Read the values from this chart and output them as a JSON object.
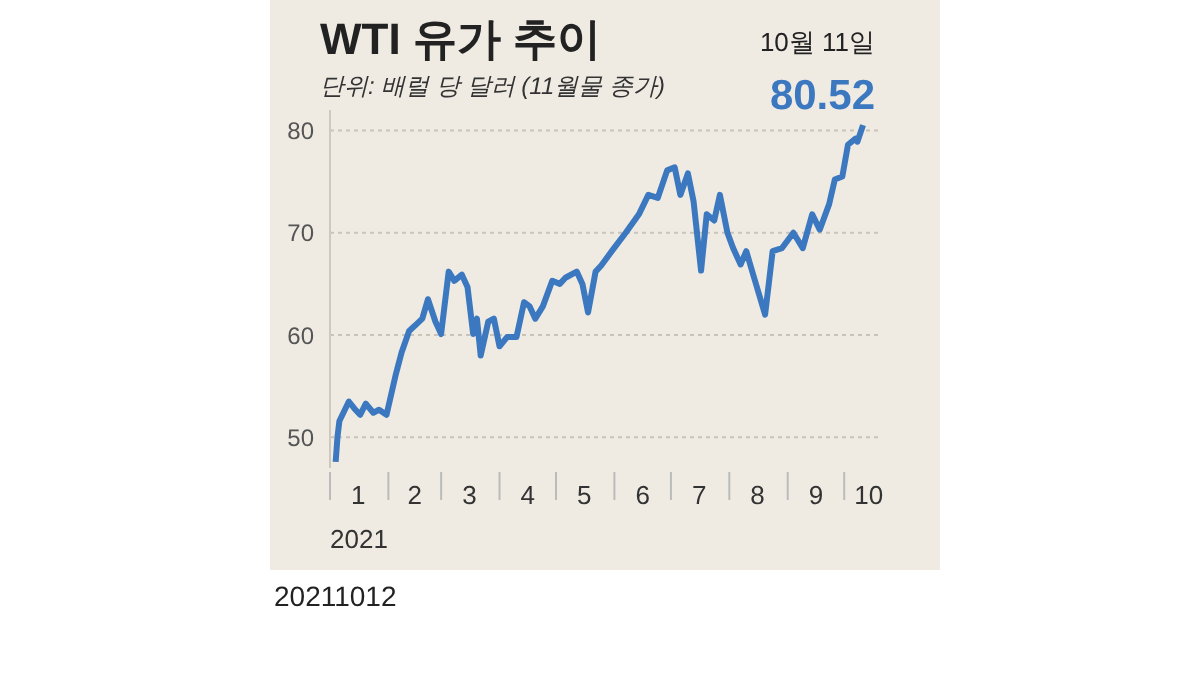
{
  "chart_data": {
    "type": "line",
    "title": "WTI 유가 추이",
    "subtitle": "단위: 배럴 당 달러 (11월물 종가)",
    "xlabel": "2021",
    "x": [
      "2021-01-04",
      "2021-01-05",
      "2021-01-06",
      "2021-01-11",
      "2021-01-14",
      "2021-01-17",
      "2021-01-20",
      "2021-01-24",
      "2021-01-27",
      "2021-01-31",
      "2021-02-05",
      "2021-02-08",
      "2021-02-12",
      "2021-02-15",
      "2021-02-19",
      "2021-02-22",
      "2021-02-26",
      "2021-03-01",
      "2021-03-05",
      "2021-03-08",
      "2021-03-12",
      "2021-03-15",
      "2021-03-18",
      "2021-03-20",
      "2021-03-22",
      "2021-03-26",
      "2021-03-29",
      "2021-04-01",
      "2021-04-05",
      "2021-04-10",
      "2021-04-14",
      "2021-04-17",
      "2021-04-20",
      "2021-04-24",
      "2021-04-29",
      "2021-05-03",
      "2021-05-06",
      "2021-05-12",
      "2021-05-15",
      "2021-05-18",
      "2021-05-22",
      "2021-05-25",
      "2021-05-31",
      "2021-06-07",
      "2021-06-14",
      "2021-06-19",
      "2021-06-24",
      "2021-06-29",
      "2021-07-03",
      "2021-07-06",
      "2021-07-10",
      "2021-07-13",
      "2021-07-17",
      "2021-07-20",
      "2021-07-24",
      "2021-07-27",
      "2021-07-31",
      "2021-08-03",
      "2021-08-07",
      "2021-08-10",
      "2021-08-14",
      "2021-08-20",
      "2021-08-24",
      "2021-08-29",
      "2021-09-04",
      "2021-09-09",
      "2021-09-14",
      "2021-09-18",
      "2021-09-23",
      "2021-09-26",
      "2021-09-30",
      "2021-10-03",
      "2021-10-07",
      "2021-10-08",
      "2021-10-11"
    ],
    "series": [
      {
        "color": "#3b78c0",
        "values": [
          47.6,
          50.1,
          51.6,
          53.5,
          52.8,
          52.2,
          53.3,
          52.4,
          52.7,
          52.2,
          56.2,
          58.3,
          60.4,
          60.9,
          61.6,
          63.5,
          61.3,
          60.1,
          66.2,
          65.3,
          65.9,
          64.7,
          60.1,
          61.6,
          58.0,
          61.3,
          61.6,
          58.9,
          59.8,
          59.8,
          63.2,
          62.8,
          61.6,
          62.8,
          65.3,
          65.0,
          65.6,
          66.2,
          65.0,
          62.2,
          66.2,
          66.8,
          68.3,
          70.0,
          71.8,
          73.7,
          73.4,
          76.1,
          76.4,
          73.7,
          75.8,
          73.1,
          66.3,
          71.8,
          71.2,
          73.7,
          70.0,
          68.5,
          66.9,
          68.2,
          65.7,
          62.0,
          68.2,
          68.5,
          70.0,
          68.5,
          71.8,
          70.3,
          72.8,
          75.2,
          75.5,
          78.6,
          79.2,
          78.9,
          80.52
        ]
      }
    ],
    "xlim": [
      "2021-01-01",
      "2021-10-20"
    ],
    "xticks": [
      {
        "value": "2021-01-01",
        "label": null
      },
      {
        "value": "2021-01-16",
        "label": "1"
      },
      {
        "value": "2021-02-01",
        "label": null
      },
      {
        "value": "2021-02-15",
        "label": "2"
      },
      {
        "value": "2021-03-01",
        "label": null
      },
      {
        "value": "2021-03-16",
        "label": "3"
      },
      {
        "value": "2021-04-01",
        "label": null
      },
      {
        "value": "2021-04-16",
        "label": "4"
      },
      {
        "value": "2021-05-01",
        "label": null
      },
      {
        "value": "2021-05-16",
        "label": "5"
      },
      {
        "value": "2021-06-01",
        "label": null
      },
      {
        "value": "2021-06-16",
        "label": "6"
      },
      {
        "value": "2021-07-01",
        "label": null
      },
      {
        "value": "2021-07-16",
        "label": "7"
      },
      {
        "value": "2021-08-01",
        "label": null
      },
      {
        "value": "2021-08-16",
        "label": "8"
      },
      {
        "value": "2021-09-01",
        "label": null
      },
      {
        "value": "2021-09-16",
        "label": "9"
      },
      {
        "value": "2021-10-01",
        "label": null
      },
      {
        "value": "2021-10-14",
        "label": "10"
      }
    ],
    "ylim": [
      47,
      82
    ],
    "yticks": [
      50,
      60,
      70,
      80
    ],
    "grid": "y",
    "legend": false,
    "marker": "none",
    "line_style": "solid",
    "annotations": [
      {
        "text": "10월 11일",
        "x": "2021-10-11",
        "y": 80.52
      },
      {
        "text": "80.52",
        "x": "2021-10-11",
        "y": 80.52
      },
      "20211012"
    ]
  }
}
